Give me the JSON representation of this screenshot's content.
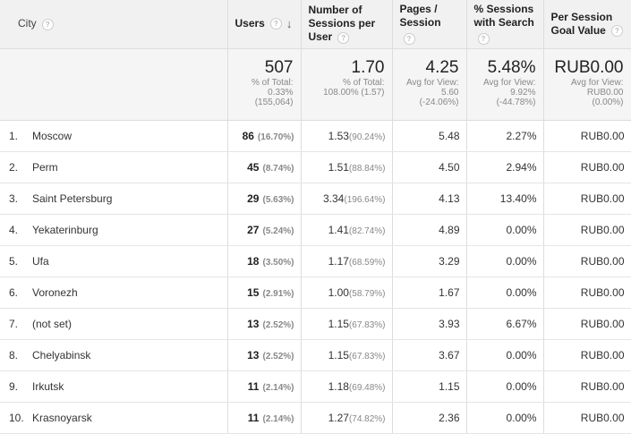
{
  "header": {
    "city": "City",
    "users": "Users",
    "sessions_per_user": "Number of Sessions per User",
    "pages_session": "Pages / Session",
    "sessions_search": "% Sessions with Search",
    "goal_value": "Per Session Goal Value",
    "help_glyph": "?",
    "sort_glyph": "↓"
  },
  "totals": {
    "users": {
      "main": "507",
      "l1": "% of Total:",
      "l2": "0.33%",
      "l3": "(155,064)"
    },
    "sessions_per_user": {
      "main": "1.70",
      "l1": "% of Total:",
      "l2": "108.00% (1.57)"
    },
    "pages_session": {
      "main": "4.25",
      "l1": "Avg for View:",
      "l2": "5.60",
      "l3": "(-24.06%)"
    },
    "sessions_search": {
      "main": "5.48%",
      "l1": "Avg for View:",
      "l2": "9.92%",
      "l3": "(-44.78%)"
    },
    "goal_value": {
      "main": "RUB0.00",
      "l1": "Avg for View:",
      "l2": "RUB0.00",
      "l3": "(0.00%)"
    }
  },
  "rows": [
    {
      "rank": "1.",
      "city": "Moscow",
      "users": "86",
      "users_pct": "(16.70%)",
      "spu": "1.53",
      "spu_pct": "(90.24%)",
      "pages": "5.48",
      "search": "2.27%",
      "goal": "RUB0.00"
    },
    {
      "rank": "2.",
      "city": "Perm",
      "users": "45",
      "users_pct": "(8.74%)",
      "spu": "1.51",
      "spu_pct": "(88.84%)",
      "pages": "4.50",
      "search": "2.94%",
      "goal": "RUB0.00"
    },
    {
      "rank": "3.",
      "city": "Saint Petersburg",
      "users": "29",
      "users_pct": "(5.63%)",
      "spu": "3.34",
      "spu_pct": "(196.64%)",
      "pages": "4.13",
      "search": "13.40%",
      "goal": "RUB0.00"
    },
    {
      "rank": "4.",
      "city": "Yekaterinburg",
      "users": "27",
      "users_pct": "(5.24%)",
      "spu": "1.41",
      "spu_pct": "(82.74%)",
      "pages": "4.89",
      "search": "0.00%",
      "goal": "RUB0.00"
    },
    {
      "rank": "5.",
      "city": "Ufa",
      "users": "18",
      "users_pct": "(3.50%)",
      "spu": "1.17",
      "spu_pct": "(68.59%)",
      "pages": "3.29",
      "search": "0.00%",
      "goal": "RUB0.00"
    },
    {
      "rank": "6.",
      "city": "Voronezh",
      "users": "15",
      "users_pct": "(2.91%)",
      "spu": "1.00",
      "spu_pct": "(58.79%)",
      "pages": "1.67",
      "search": "0.00%",
      "goal": "RUB0.00"
    },
    {
      "rank": "7.",
      "city": "(not set)",
      "users": "13",
      "users_pct": "(2.52%)",
      "spu": "1.15",
      "spu_pct": "(67.83%)",
      "pages": "3.93",
      "search": "6.67%",
      "goal": "RUB0.00"
    },
    {
      "rank": "8.",
      "city": "Chelyabinsk",
      "users": "13",
      "users_pct": "(2.52%)",
      "spu": "1.15",
      "spu_pct": "(67.83%)",
      "pages": "3.67",
      "search": "0.00%",
      "goal": "RUB0.00"
    },
    {
      "rank": "9.",
      "city": "Irkutsk",
      "users": "11",
      "users_pct": "(2.14%)",
      "spu": "1.18",
      "spu_pct": "(69.48%)",
      "pages": "1.15",
      "search": "0.00%",
      "goal": "RUB0.00"
    },
    {
      "rank": "10.",
      "city": "Krasnoyarsk",
      "users": "11",
      "users_pct": "(2.14%)",
      "spu": "1.27",
      "spu_pct": "(74.82%)",
      "pages": "2.36",
      "search": "0.00%",
      "goal": "RUB0.00"
    }
  ]
}
